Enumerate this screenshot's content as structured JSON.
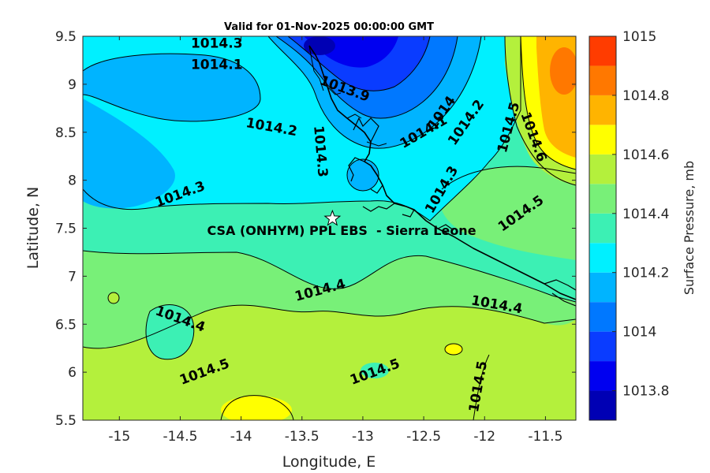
{
  "title": "Valid for 01-Nov-2025 00:00:00 GMT",
  "axes": {
    "xlabel": "Longitude, E",
    "ylabel": "Latitude, N",
    "xlim": [
      -15.3,
      -11.25
    ],
    "ylim": [
      5.5,
      9.5
    ],
    "xticks": [
      -15,
      -14.5,
      -14,
      -13.5,
      -13,
      -12.5,
      -12,
      -11.5
    ],
    "xtick_labels": [
      "-15",
      "-14.5",
      "-14",
      "-13.5",
      "-13",
      "-12.5",
      "-12",
      "-11.5"
    ],
    "yticks": [
      5.5,
      6,
      6.5,
      7,
      7.5,
      8,
      8.5,
      9,
      9.5
    ],
    "ytick_labels": [
      "5.5",
      "6",
      "6.5",
      "7",
      "7.5",
      "8",
      "8.5",
      "9",
      "9.5"
    ]
  },
  "colorbar": {
    "label": "Surface Pressure, mb",
    "range": [
      1013.7,
      1015
    ],
    "ticks": [
      1013.8,
      1014,
      1014.2,
      1014.4,
      1014.6,
      1014.8,
      1015
    ],
    "tick_labels": [
      "1013.8",
      "1014",
      "1014.2",
      "1014.4",
      "1014.6",
      "1014.8",
      "1015"
    ],
    "levels": [
      {
        "from": 1013.7,
        "to": 1013.8,
        "color": "#0000b4"
      },
      {
        "from": 1013.8,
        "to": 1013.9,
        "color": "#0000f0"
      },
      {
        "from": 1013.9,
        "to": 1014.0,
        "color": "#0a3cff"
      },
      {
        "from": 1014.0,
        "to": 1014.1,
        "color": "#0078ff"
      },
      {
        "from": 1014.1,
        "to": 1014.2,
        "color": "#00b4ff"
      },
      {
        "from": 1014.2,
        "to": 1014.3,
        "color": "#00f0ff"
      },
      {
        "from": 1014.3,
        "to": 1014.4,
        "color": "#3cf0b4"
      },
      {
        "from": 1014.4,
        "to": 1014.5,
        "color": "#78f078"
      },
      {
        "from": 1014.5,
        "to": 1014.6,
        "color": "#b4f03c"
      },
      {
        "from": 1014.6,
        "to": 1014.7,
        "color": "#ffff00"
      },
      {
        "from": 1014.7,
        "to": 1014.8,
        "color": "#ffb400"
      },
      {
        "from": 1014.8,
        "to": 1014.9,
        "color": "#ff7800"
      },
      {
        "from": 1014.9,
        "to": 1015.0,
        "color": "#ff3c00"
      }
    ]
  },
  "chart_data": {
    "type": "heatmap",
    "title": "Valid for 01-Nov-2025 00:00:00 GMT",
    "xlabel": "Longitude, E",
    "ylabel": "Latitude, N",
    "xlim": [
      -15.3,
      -11.25
    ],
    "ylim": [
      5.5,
      9.5
    ],
    "variable": "Surface Pressure, mb",
    "station": {
      "name": "CSA (ONHYM) PPL EBS  - Sierra Leone",
      "lon": -13.25,
      "lat": 7.6
    },
    "contour_labels": [
      {
        "text": "1014.1",
        "lon": -14.2,
        "lat": 9.2
      },
      {
        "text": "1014.3",
        "lon": -14.5,
        "lat": 7.85
      },
      {
        "text": "1014.2",
        "lon": -13.75,
        "lat": 8.55
      },
      {
        "text": "1014.3",
        "lon": -13.35,
        "lat": 8.3
      },
      {
        "text": "1014.4",
        "lon": -13.35,
        "lat": 6.85
      },
      {
        "text": "1014.4",
        "lon": -14.5,
        "lat": 6.55
      },
      {
        "text": "1014.5",
        "lon": -14.3,
        "lat": 6.0
      },
      {
        "text": "1014.5",
        "lon": -12.9,
        "lat": 6.0
      },
      {
        "text": "1014.5",
        "lon": -12.05,
        "lat": 5.85
      },
      {
        "text": "1014.4",
        "lon": -11.9,
        "lat": 6.7
      },
      {
        "text": "1014.3",
        "lon": -12.35,
        "lat": 7.9
      },
      {
        "text": "1014.5",
        "lon": -11.7,
        "lat": 7.65
      },
      {
        "text": "1013.9",
        "lon": -13.15,
        "lat": 8.95
      },
      {
        "text": "1014",
        "lon": -12.35,
        "lat": 8.7
      },
      {
        "text": "1014.1",
        "lon": -12.5,
        "lat": 8.5
      },
      {
        "text": "1014.2",
        "lon": -12.15,
        "lat": 8.6
      },
      {
        "text": "1014.5",
        "lon": -11.8,
        "lat": 8.55
      },
      {
        "text": "1014.6",
        "lon": -11.6,
        "lat": 8.45
      },
      {
        "text": "1014.3",
        "lon": -14.2,
        "lat": 9.42
      }
    ]
  }
}
